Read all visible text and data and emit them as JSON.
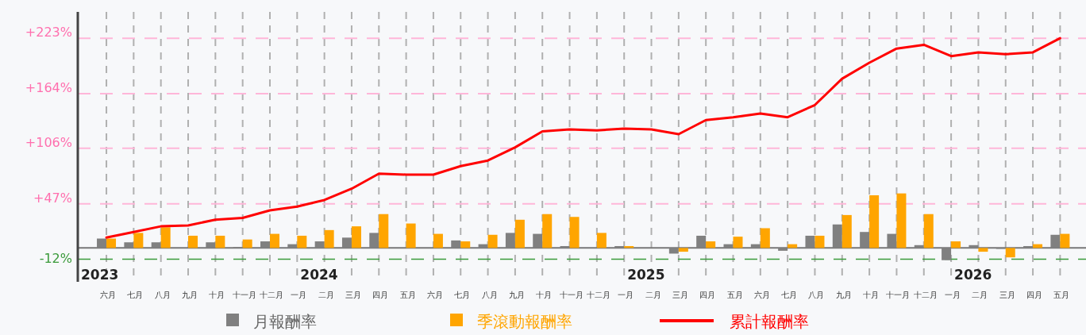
{
  "chart_data": {
    "type": "bar",
    "categories": [
      "六月",
      "七月",
      "八月",
      "九月",
      "十月",
      "十一月",
      "十二月",
      "一月",
      "二月",
      "三月",
      "四月",
      "五月",
      "六月",
      "七月",
      "八月",
      "九月",
      "十月",
      "十一月",
      "十二月",
      "一月",
      "二月",
      "三月",
      "四月",
      "五月",
      "六月",
      "七月",
      "八月",
      "九月",
      "十月",
      "十一月",
      "十二月",
      "一月",
      "二月",
      "三月",
      "四月",
      "五月"
    ],
    "ylim": [
      -36,
      251
    ],
    "yticks": [
      {
        "value": 47,
        "label": "+47%"
      },
      {
        "value": 106,
        "label": "+106%"
      },
      {
        "value": 164,
        "label": "+164%"
      },
      {
        "value": 223,
        "label": "+223%"
      }
    ],
    "ref_lines": [
      {
        "axis": "y",
        "value": -12,
        "label": "-12%",
        "color": "#3a9a3a",
        "line_style": "dashed"
      }
    ],
    "grid": true,
    "legend": "bottom",
    "annotations": [
      "2023",
      "2024",
      "2025",
      "2026"
    ],
    "series": [
      {
        "name": "月報酬率",
        "color": "#808080",
        "values": [
          10,
          6,
          6,
          0,
          6,
          1,
          7,
          4,
          7,
          11,
          16,
          0,
          0,
          8,
          4,
          16,
          15,
          2,
          0,
          2,
          0,
          -6,
          13,
          4,
          4,
          -3,
          13,
          25,
          17,
          15,
          3,
          -13,
          3,
          -1,
          2,
          14
        ]
      },
      {
        "name": "季滾動報酬率",
        "color": "#ffa500",
        "values": [
          10,
          16,
          22,
          13,
          13,
          9,
          15,
          13,
          19,
          23,
          36,
          26,
          15,
          7,
          14,
          30,
          36,
          33,
          16,
          2,
          0,
          -4,
          7,
          12,
          21,
          4,
          13,
          35,
          56,
          58,
          36,
          7,
          -4,
          -10,
          4,
          15
        ]
      },
      {
        "name": "累計報酬率",
        "type": "line",
        "color": "#ff0000",
        "values": [
          11,
          17,
          23,
          24,
          30,
          32,
          40,
          44,
          51,
          63,
          79,
          78,
          78,
          87,
          93,
          107,
          124,
          126,
          125,
          127,
          126,
          121,
          136,
          139,
          143,
          139,
          152,
          180,
          197,
          212,
          216,
          204,
          208,
          206,
          208,
          223
        ]
      }
    ]
  }
}
